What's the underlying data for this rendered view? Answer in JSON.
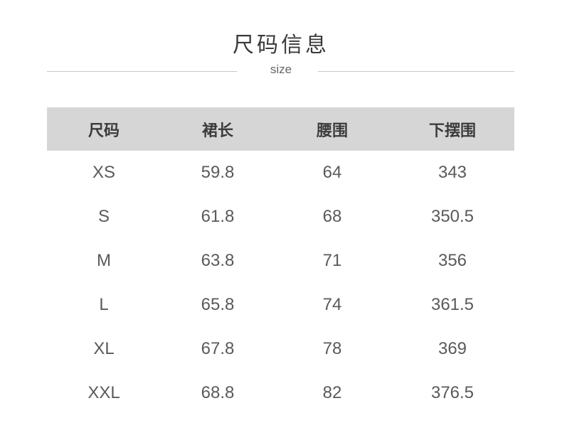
{
  "title": "尺码信息",
  "subtitle": "size",
  "table": {
    "headers": [
      "尺码",
      "裙长",
      "腰围",
      "下摆围"
    ],
    "rows": [
      [
        "XS",
        "59.8",
        "64",
        "343"
      ],
      [
        "S",
        "61.8",
        "68",
        "350.5"
      ],
      [
        "M",
        "63.8",
        "71",
        "356"
      ],
      [
        "L",
        "65.8",
        "74",
        "361.5"
      ],
      [
        "XL",
        "67.8",
        "78",
        "369"
      ],
      [
        "XXL",
        "68.8",
        "82",
        "376.5"
      ]
    ]
  }
}
